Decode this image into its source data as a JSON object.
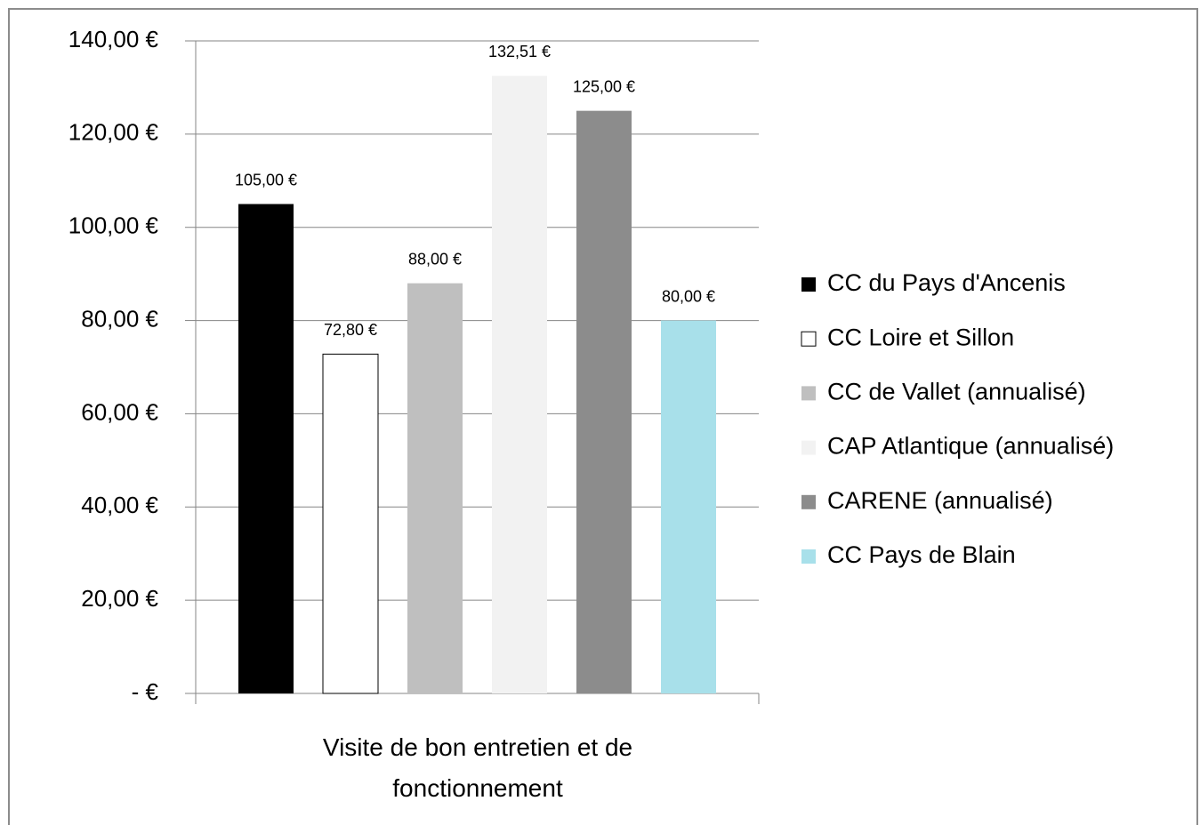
{
  "chart_data": {
    "type": "bar",
    "categories": [
      "Visite de bon entretien et de fonctionnement"
    ],
    "series": [
      {
        "name": "CC du Pays d'Ancenis",
        "color": "#000000",
        "values": [
          105.0
        ],
        "value_labels": [
          "105,00 €"
        ]
      },
      {
        "name": "CC Loire et Sillon",
        "color": "#ffffff",
        "values": [
          72.8
        ],
        "value_labels": [
          "72,80 €"
        ]
      },
      {
        "name": "CC de Vallet (annualisé)",
        "color": "#bfbfbf",
        "values": [
          88.0
        ],
        "value_labels": [
          "88,00 €"
        ]
      },
      {
        "name": "CAP Atlantique (annualisé)",
        "color": "#f2f2f2",
        "values": [
          132.51
        ],
        "value_labels": [
          "132,51 €"
        ]
      },
      {
        "name": "CARENE (annualisé)",
        "color": "#8c8c8c",
        "values": [
          125.0
        ],
        "value_labels": [
          "125,00 €"
        ]
      },
      {
        "name": "CC Pays de Blain",
        "color": "#a8e0ea",
        "values": [
          80.0
        ],
        "value_labels": [
          "80,00 €"
        ]
      }
    ],
    "ylim": [
      0,
      140
    ],
    "yticks": [
      {
        "value": 0,
        "label": "- €"
      },
      {
        "value": 20,
        "label": "20,00 €"
      },
      {
        "value": 40,
        "label": "40,00 €"
      },
      {
        "value": 60,
        "label": "60,00 €"
      },
      {
        "value": 80,
        "label": "80,00 €"
      },
      {
        "value": 100,
        "label": "100,00 €"
      },
      {
        "value": 120,
        "label": "120,00 €"
      },
      {
        "value": 140,
        "label": "140,00 €"
      }
    ],
    "grid": true,
    "legend": "right"
  }
}
